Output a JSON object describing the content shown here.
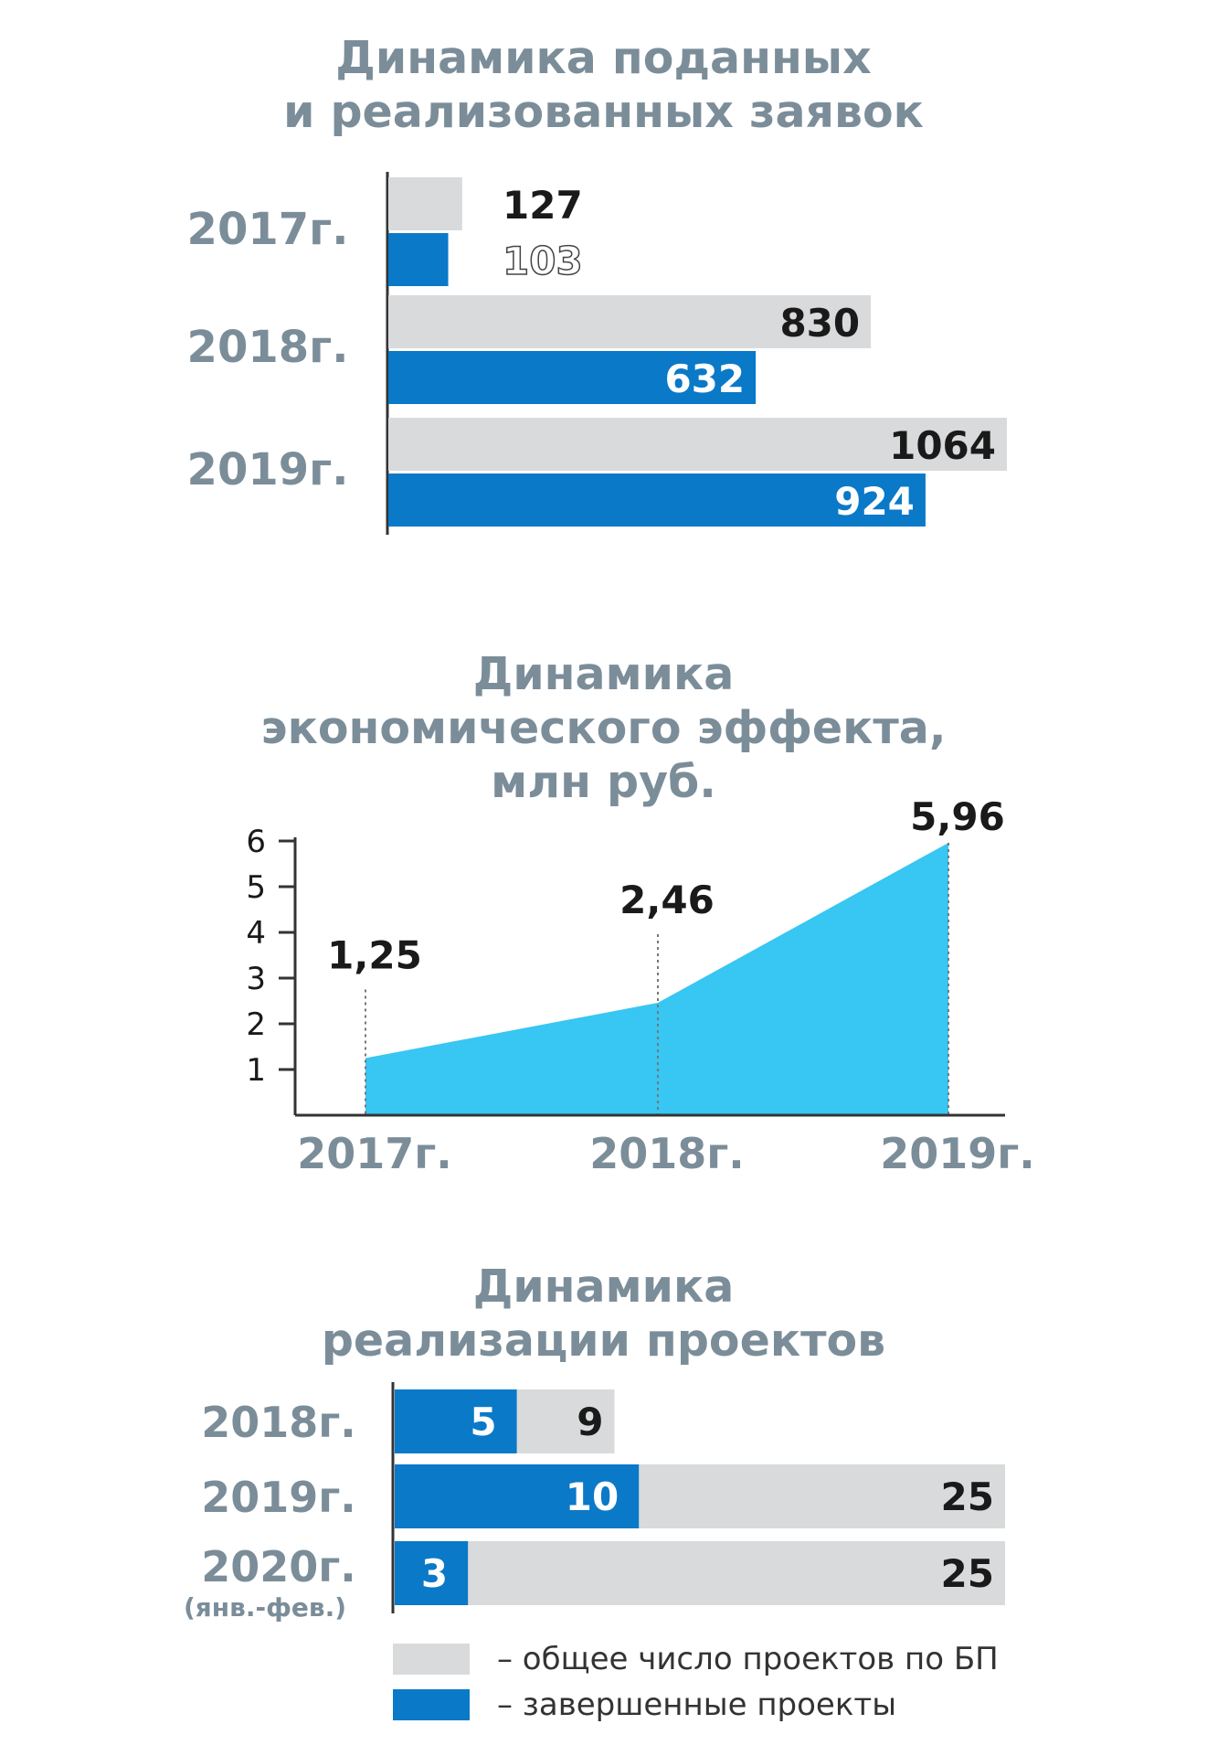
{
  "colors": {
    "title": "#7b8d99",
    "gray_bar": "#d9dadb",
    "blue_bar": "#0a79c8",
    "area": "#38c6f2",
    "axis": "#333333",
    "value_dark": "#1a1a1a",
    "value_light": "#ffffff"
  },
  "titles": {
    "c1": [
      "Динамика поданных",
      "и реализованных заявок"
    ],
    "c2": [
      "Динамика",
      "экономического эффекта,",
      "млн руб."
    ],
    "c3": [
      "Динамика",
      "реализации проектов"
    ]
  },
  "chart_data": [
    {
      "type": "bar",
      "orientation": "horizontal",
      "title": "Динамика поданных и реализованных заявок",
      "categories": [
        "2017г.",
        "2018г.",
        "2019г."
      ],
      "series": [
        {
          "values": [
            127,
            830,
            1064
          ]
        },
        {
          "values": [
            103,
            632,
            924
          ]
        }
      ],
      "xlim": [
        0,
        1064
      ],
      "grid": false,
      "legend": "none"
    },
    {
      "type": "area",
      "title": "Динамика экономического эффекта, млн руб.",
      "categories": [
        "2017г.",
        "2018г.",
        "2019г."
      ],
      "values": [
        1.25,
        2.46,
        5.96
      ],
      "data_labels": [
        "1,25",
        "2,46",
        "5,96"
      ],
      "y_ticks": [
        1,
        2,
        3,
        4,
        5,
        6
      ],
      "ylim": [
        0,
        6
      ],
      "grid": false,
      "legend": "none"
    },
    {
      "type": "bar",
      "orientation": "horizontal",
      "title": "Динамика реализации проектов",
      "categories": [
        "2018г.",
        "2019г.",
        "2020г."
      ],
      "category_notes": [
        "",
        "",
        "(янв.-фев.)"
      ],
      "series": [
        {
          "name": "– общее число проектов по БП",
          "values": [
            9,
            25,
            25
          ]
        },
        {
          "name": "– завершенные проекты",
          "values": [
            5,
            10,
            3
          ]
        }
      ],
      "xlim": [
        0,
        25
      ],
      "grid": false,
      "legend": "bottom"
    }
  ]
}
